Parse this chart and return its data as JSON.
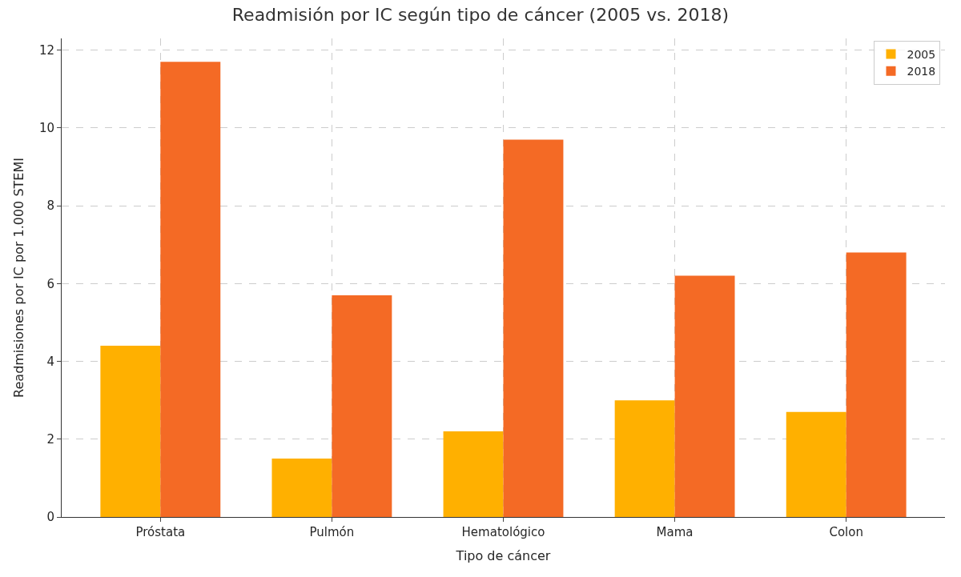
{
  "chart_data": {
    "type": "bar",
    "title": "Readmisión por IC según tipo de cáncer (2005 vs. 2018)",
    "xlabel": "Tipo de cáncer",
    "ylabel": "Readmisiones por IC por 1.000 STEMI",
    "categories": [
      "Próstata",
      "Pulmón",
      "Hematológico",
      "Mama",
      "Colon"
    ],
    "series": [
      {
        "name": "2005",
        "color": "#ffb000",
        "values": [
          4.4,
          1.5,
          2.2,
          3.0,
          2.7
        ]
      },
      {
        "name": "2018",
        "color": "#f46a25",
        "values": [
          11.7,
          5.7,
          9.7,
          6.2,
          6.8
        ]
      }
    ],
    "ylim": [
      0,
      12.3
    ],
    "yticks": [
      0,
      2,
      4,
      6,
      8,
      10,
      12
    ],
    "grid": true,
    "legend": "top right"
  }
}
